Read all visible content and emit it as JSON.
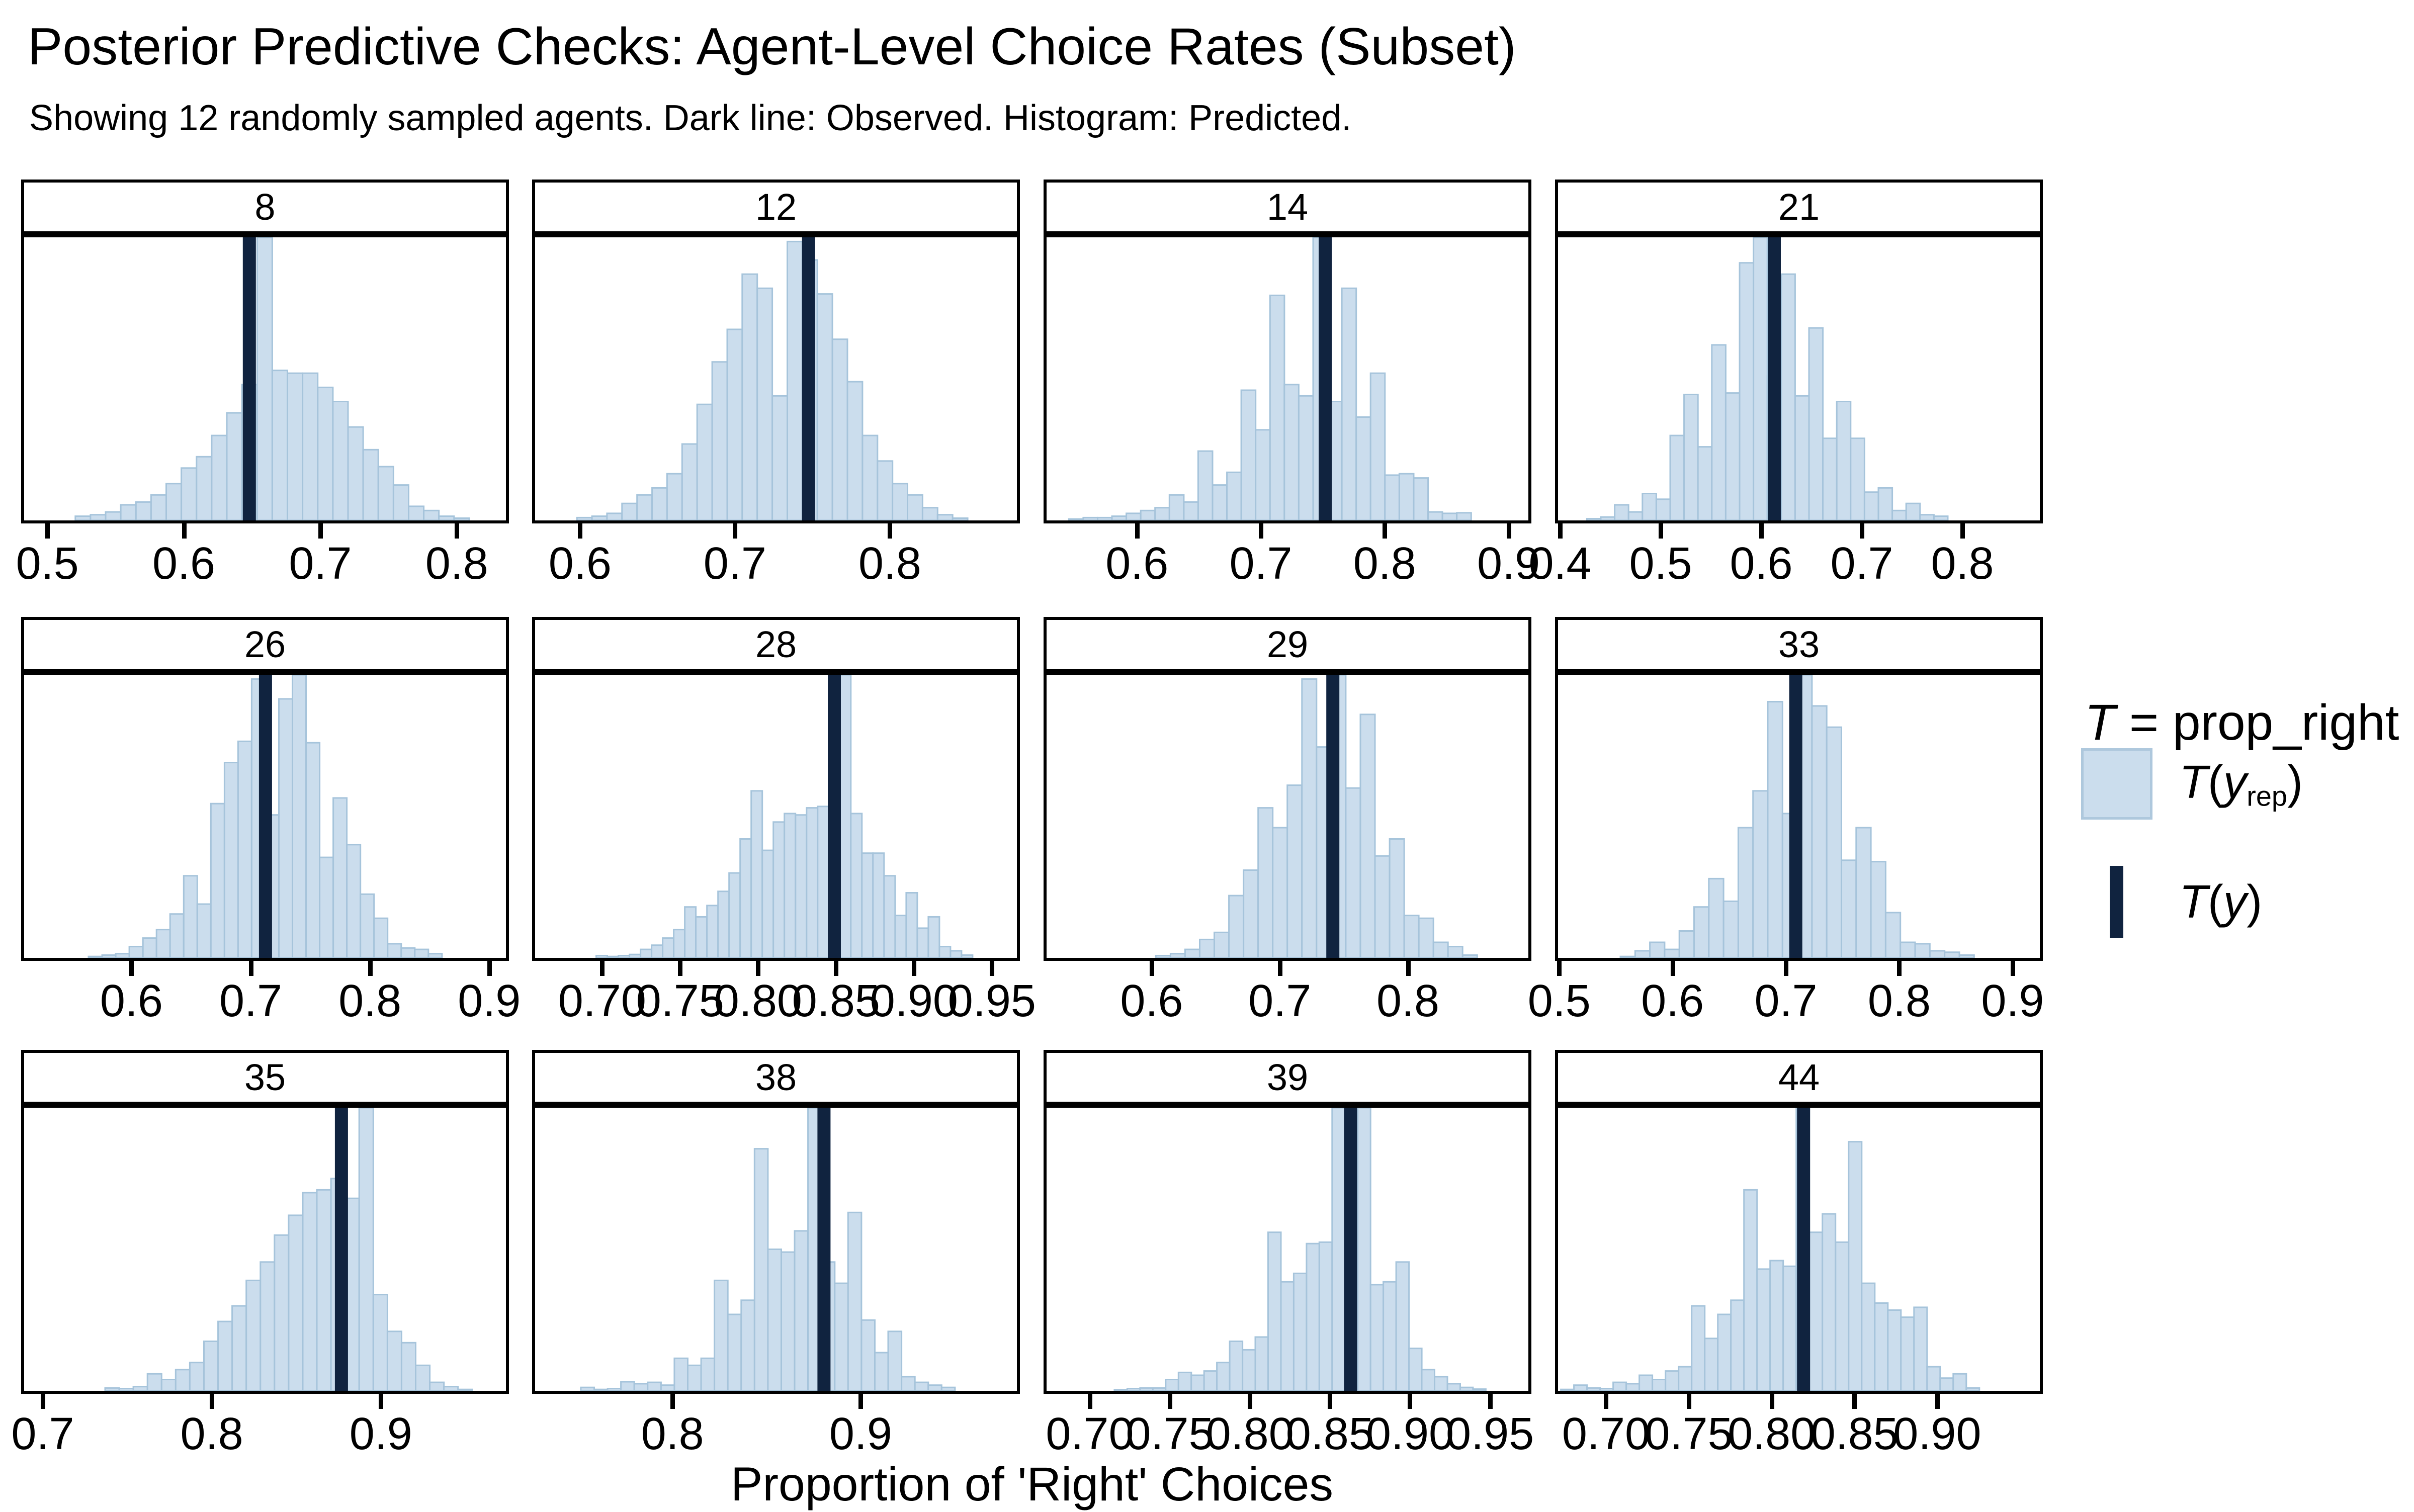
{
  "chart_data": {
    "type": "histogram-grid",
    "title": "Posterior Predictive Checks: Agent-Level Choice Rates (Subset)",
    "subtitle": "Showing 12 randomly sampled agents. Dark line: Observed. Histogram: Predicted.",
    "xlabel": "Proportion of 'Right' Choices",
    "grid": {
      "ncol": 4,
      "nrow": 3
    },
    "legend": {
      "title_var": "T",
      "title_rest": " = prop_right",
      "items": [
        {
          "name": "predicted",
          "fn": "T",
          "open": "(",
          "arg": "y",
          "sub": "rep",
          "close": ")"
        },
        {
          "name": "observed",
          "fn": "T",
          "open": "(",
          "arg": "y",
          "sub": "",
          "close": ")"
        }
      ]
    },
    "colors": {
      "predicted_fill": "#cbdded",
      "predicted_stroke": "#a6c4db",
      "observed_line": "#10233f",
      "frame": "#000000"
    },
    "facets": [
      {
        "label": "8",
        "domain": [
          0.483,
          0.836
        ],
        "tick_values": [
          0.5,
          0.6,
          0.7,
          0.8
        ],
        "tick_labels": [
          "0.5",
          "0.6",
          "0.7",
          "0.8"
        ],
        "bin_start": 0.5205,
        "bin_width": 0.0111,
        "bin_heights": [
          0.015,
          0.02,
          0.03,
          0.055,
          0.065,
          0.09,
          0.13,
          0.185,
          0.225,
          0.3,
          0.38,
          0.48,
          1.0,
          0.53,
          0.52,
          0.52,
          0.47,
          0.42,
          0.33,
          0.25,
          0.19,
          0.125,
          0.05,
          0.035,
          0.015,
          0.008
        ],
        "observed": 0.648
      },
      {
        "label": "12",
        "domain": [
          0.571,
          0.882
        ],
        "tick_values": [
          0.6,
          0.7,
          0.8
        ],
        "tick_labels": [
          "0.6",
          "0.7",
          "0.8"
        ],
        "bin_start": 0.598,
        "bin_width": 0.0097,
        "bin_heights": [
          0.01,
          0.015,
          0.025,
          0.06,
          0.09,
          0.115,
          0.165,
          0.27,
          0.41,
          0.56,
          0.675,
          0.87,
          0.82,
          0.44,
          0.985,
          0.92,
          0.8,
          0.64,
          0.49,
          0.3,
          0.21,
          0.13,
          0.09,
          0.045,
          0.02,
          0.008
        ],
        "observed": 0.7475
      },
      {
        "label": "14",
        "domain": [
          0.527,
          0.916
        ],
        "tick_values": [
          0.6,
          0.7,
          0.8,
          0.9
        ],
        "tick_labels": [
          "0.6",
          "0.7",
          "0.8",
          "0.9"
        ],
        "bin_start": 0.545,
        "bin_width": 0.0116,
        "bin_heights": [
          0.005,
          0.01,
          0.01,
          0.015,
          0.025,
          0.035,
          0.045,
          0.09,
          0.065,
          0.245,
          0.125,
          0.17,
          0.46,
          0.32,
          0.795,
          0.48,
          0.44,
          1.0,
          0.42,
          0.82,
          0.365,
          0.52,
          0.16,
          0.165,
          0.15,
          0.03,
          0.025,
          0.027
        ],
        "observed": 0.752
      },
      {
        "label": "21",
        "domain": [
          0.398,
          0.877
        ],
        "tick_values": [
          0.4,
          0.5,
          0.6,
          0.7,
          0.8
        ],
        "tick_labels": [
          "0.4",
          "0.5",
          "0.6",
          "0.7",
          "0.8"
        ],
        "bin_start": 0.4267,
        "bin_width": 0.0138,
        "bin_heights": [
          0.006,
          0.012,
          0.055,
          0.03,
          0.095,
          0.075,
          0.3,
          0.445,
          0.26,
          0.62,
          0.45,
          0.91,
          1.0,
          0.51,
          0.87,
          0.44,
          0.68,
          0.29,
          0.42,
          0.29,
          0.1,
          0.115,
          0.035,
          0.06,
          0.02,
          0.015
        ],
        "observed": 0.613
      },
      {
        "label": "26",
        "domain": [
          0.51,
          0.914
        ],
        "tick_values": [
          0.6,
          0.7,
          0.8,
          0.9
        ],
        "tick_labels": [
          "0.6",
          "0.7",
          "0.8",
          "0.9"
        ],
        "bin_start": 0.564,
        "bin_width": 0.0114,
        "bin_heights": [
          0.005,
          0.01,
          0.015,
          0.04,
          0.07,
          0.1,
          0.155,
          0.29,
          0.19,
          0.545,
          0.69,
          0.765,
          0.985,
          0.505,
          0.915,
          1.0,
          0.76,
          0.355,
          0.565,
          0.4,
          0.225,
          0.14,
          0.05,
          0.035,
          0.03,
          0.015
        ],
        "observed": 0.7124
      },
      {
        "label": "28",
        "domain": [
          0.657,
          0.966
        ],
        "tick_values": [
          0.7,
          0.75,
          0.8,
          0.85,
          0.9,
          0.95
        ],
        "tick_labels": [
          "0.70",
          "0.75",
          "0.80",
          "0.85",
          "0.90",
          "0.95"
        ],
        "bin_start": 0.6962,
        "bin_width": 0.0071,
        "bin_heights": [
          0.008,
          0.005,
          0.008,
          0.012,
          0.03,
          0.045,
          0.07,
          0.1,
          0.18,
          0.145,
          0.185,
          0.235,
          0.3,
          0.42,
          0.59,
          0.38,
          0.48,
          0.51,
          0.505,
          0.53,
          0.535,
          0.58,
          1.0,
          0.51,
          0.37,
          0.37,
          0.29,
          0.15,
          0.23,
          0.105,
          0.145,
          0.04,
          0.025,
          0.01
        ],
        "observed": 0.8489
      },
      {
        "label": "29",
        "domain": [
          0.518,
          0.894
        ],
        "tick_values": [
          0.6,
          0.7,
          0.8
        ],
        "tick_labels": [
          "0.6",
          "0.7",
          "0.8"
        ],
        "bin_start": 0.6033,
        "bin_width": 0.0114,
        "bin_heights": [
          0.008,
          0.015,
          0.03,
          0.065,
          0.09,
          0.22,
          0.31,
          0.53,
          0.46,
          0.61,
          0.985,
          0.745,
          1.0,
          0.6,
          0.86,
          0.36,
          0.42,
          0.15,
          0.14,
          0.055,
          0.04,
          0.01
        ],
        "observed": 0.7414
      },
      {
        "label": "33",
        "domain": [
          0.499,
          0.924
        ],
        "tick_values": [
          0.5,
          0.6,
          0.7,
          0.8,
          0.9
        ],
        "tick_labels": [
          "0.5",
          "0.6",
          "0.7",
          "0.8",
          "0.9"
        ],
        "bin_start": 0.554,
        "bin_width": 0.013,
        "bin_heights": [
          0.005,
          0.025,
          0.055,
          0.03,
          0.095,
          0.18,
          0.28,
          0.2,
          0.46,
          0.59,
          0.905,
          0.51,
          1.0,
          0.89,
          0.815,
          0.345,
          0.46,
          0.34,
          0.16,
          0.055,
          0.05,
          0.025,
          0.02,
          0.01
        ],
        "observed": 0.7087
      },
      {
        "label": "35",
        "domain": [
          0.689,
          0.974
        ],
        "tick_values": [
          0.7,
          0.8,
          0.9
        ],
        "tick_labels": [
          "0.7",
          "0.8",
          "0.9"
        ],
        "bin_start": 0.7369,
        "bin_width": 0.00835,
        "bin_heights": [
          0.01,
          0.008,
          0.015,
          0.06,
          0.04,
          0.075,
          0.1,
          0.175,
          0.245,
          0.3,
          0.39,
          0.455,
          0.55,
          0.62,
          0.7,
          0.71,
          0.75,
          0.68,
          1.0,
          0.34,
          0.21,
          0.17,
          0.09,
          0.03,
          0.015,
          0.005
        ],
        "observed": 0.8767
      },
      {
        "label": "38",
        "domain": [
          0.727,
          0.983
        ],
        "tick_values": [
          0.8,
          0.9
        ],
        "tick_labels": [
          "0.8",
          "0.9"
        ],
        "bin_start": 0.7513,
        "bin_width": 0.0071,
        "bin_heights": [
          0.012,
          0.005,
          0.008,
          0.032,
          0.025,
          0.03,
          0.02,
          0.115,
          0.09,
          0.115,
          0.39,
          0.27,
          0.32,
          0.855,
          0.5,
          0.49,
          0.565,
          1.0,
          0.455,
          0.38,
          0.63,
          0.25,
          0.135,
          0.21,
          0.05,
          0.03,
          0.02,
          0.012
        ],
        "observed": 0.8805
      },
      {
        "label": "39",
        "domain": [
          0.673,
          0.974
        ],
        "tick_values": [
          0.7,
          0.75,
          0.8,
          0.85,
          0.9,
          0.95
        ],
        "tick_labels": [
          "0.70",
          "0.75",
          "0.80",
          "0.85",
          "0.90",
          "0.95"
        ],
        "bin_start": 0.7154,
        "bin_width": 0.008,
        "bin_heights": [
          0.004,
          0.008,
          0.01,
          0.01,
          0.04,
          0.065,
          0.055,
          0.07,
          0.1,
          0.175,
          0.145,
          0.19,
          0.56,
          0.385,
          0.415,
          0.52,
          0.525,
          1.0,
          0.53,
          1.0,
          0.375,
          0.385,
          0.455,
          0.15,
          0.075,
          0.05,
          0.025,
          0.012,
          0.006
        ],
        "observed": 0.8629
      },
      {
        "label": "44",
        "domain": [
          0.671,
          0.962
        ],
        "tick_values": [
          0.7,
          0.75,
          0.8,
          0.85,
          0.9
        ],
        "tick_labels": [
          "0.70",
          "0.75",
          "0.80",
          "0.85",
          "0.90"
        ],
        "bin_start": 0.6727,
        "bin_width": 0.0079,
        "bin_heights": [
          0.005,
          0.02,
          0.01,
          0.008,
          0.03,
          0.025,
          0.055,
          0.04,
          0.07,
          0.085,
          0.3,
          0.185,
          0.27,
          0.32,
          0.71,
          0.43,
          0.46,
          0.44,
          1.0,
          0.56,
          0.625,
          0.525,
          0.88,
          0.38,
          0.31,
          0.285,
          0.26,
          0.295,
          0.085,
          0.045,
          0.06,
          0.01
        ],
        "observed": 0.8193
      }
    ]
  }
}
